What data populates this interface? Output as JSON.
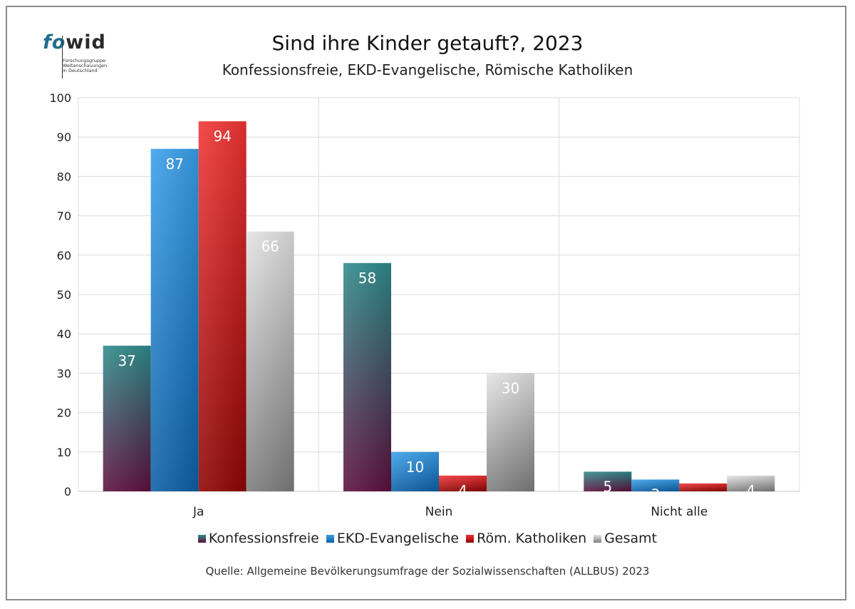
{
  "logo": {
    "brand_left": "fo",
    "brand_right": "wid",
    "tagline": [
      "Forschungsgruppe",
      "Weltanschauungen",
      "in Deutschland"
    ]
  },
  "chart_data": {
    "type": "bar",
    "title": "Sind ihre Kinder getauft?, 2023",
    "subtitle": "Konfessionsfreie, EKD-Evangelische, Römische Katholiken",
    "categories": [
      "Ja",
      "Nein",
      "Nicht alle"
    ],
    "series": [
      {
        "name": "Konfessionsfreie",
        "values": [
          37,
          58,
          5
        ],
        "color": "#2e8b8b",
        "color_bottom": "#5c0f3c"
      },
      {
        "name": "EKD-Evangelische",
        "values": [
          87,
          10,
          3
        ],
        "color": "#3aa0ea",
        "color_bottom": "#0c5fa6"
      },
      {
        "name": "Röm. Katholiken",
        "values": [
          94,
          4,
          2
        ],
        "color": "#f23434",
        "color_bottom": "#8e0404"
      },
      {
        "name": "Gesamt",
        "values": [
          66,
          30,
          4
        ],
        "color": "#e4e4e4",
        "color_bottom": "#7d7d7d"
      }
    ],
    "ylim": [
      0,
      100
    ],
    "yticks": [
      0,
      10,
      20,
      30,
      40,
      50,
      60,
      70,
      80,
      90,
      100
    ],
    "grid": true,
    "legend_position": "bottom",
    "source": "Quelle: Allgemeine Bevölkerungsumfrage der Sozialwissenschaften (ALLBUS) 2023"
  }
}
